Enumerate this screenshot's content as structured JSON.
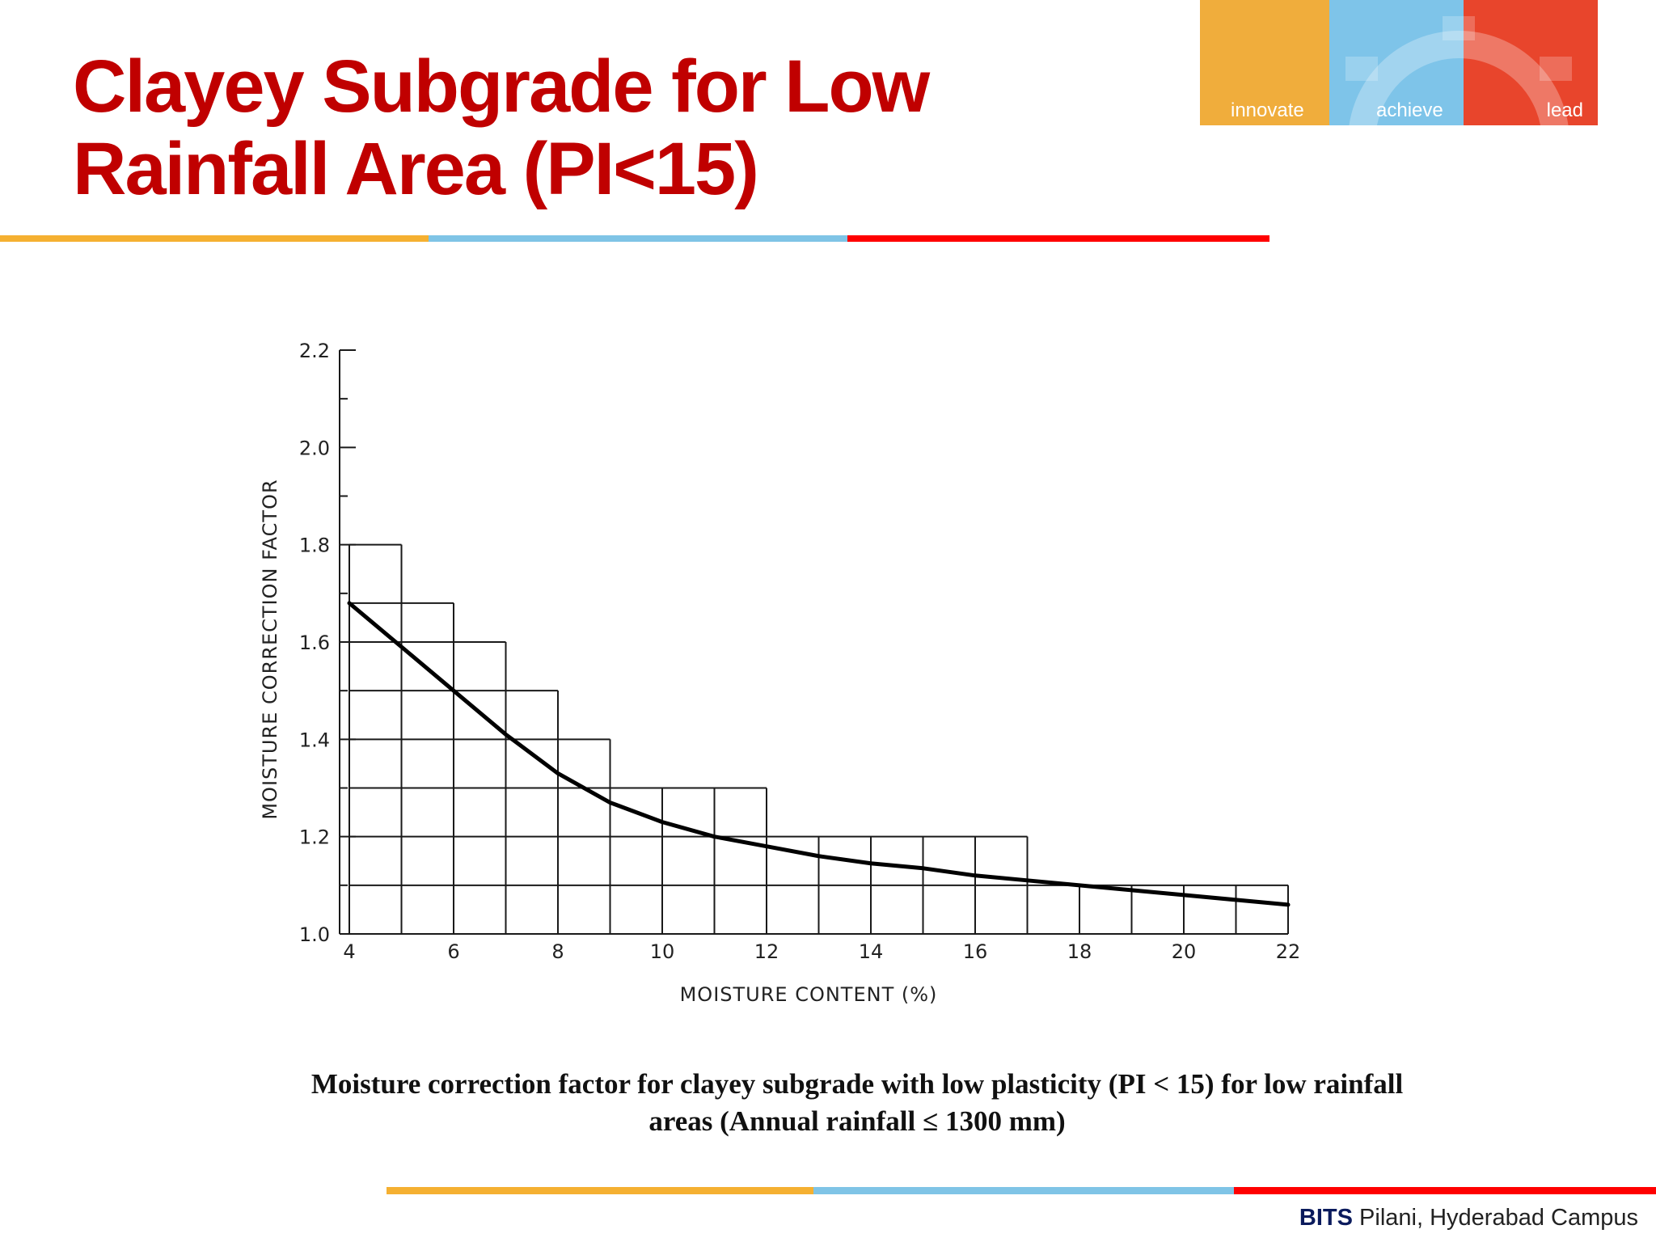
{
  "slide": {
    "title_line1": "Clayey Subgrade for Low",
    "title_line2": "Rainfall Area (PI<15)",
    "caption_line1": "Moisture correction factor for clayey subgrade with low plasticity (PI < 15) for low rainfall",
    "caption_line2": "areas  (Annual rainfall ≤  1300 mm)"
  },
  "logo": {
    "words": [
      "innovate",
      "achieve",
      "lead"
    ],
    "colors": [
      "#f0ad3c",
      "#7ec4e9",
      "#e8452c"
    ]
  },
  "divider_colors": [
    "#f5b031",
    "#7fc4e6",
    "#ff0000"
  ],
  "footer": {
    "brand": "BITS",
    "campus": " Pilani, Hyderabad Campus"
  },
  "chart_data": {
    "type": "line",
    "title": "",
    "xlabel": "MOISTURE CONTENT (%)",
    "ylabel": "MOISTURE CORRECTION FACTOR",
    "xlim": [
      4,
      22
    ],
    "ylim": [
      1.0,
      2.2
    ],
    "x_ticks": [
      4,
      6,
      8,
      10,
      12,
      14,
      16,
      18,
      20,
      22
    ],
    "x_tick_labels": [
      "4",
      "6",
      "8",
      "10",
      "12",
      "14",
      "16",
      "18",
      "20",
      "22"
    ],
    "y_ticks": [
      1.0,
      1.2,
      1.4,
      1.6,
      1.8,
      2.0,
      2.2
    ],
    "y_tick_labels": [
      "1.0",
      "1.2",
      "1.4",
      "1.6",
      "1.8",
      "2.0",
      "2.2"
    ],
    "grid": true,
    "series": [
      {
        "name": "Moisture correction factor",
        "x": [
          4,
          5,
          6,
          7,
          8,
          9,
          10,
          11,
          12,
          13,
          14,
          15,
          16,
          17,
          18,
          19,
          20,
          21,
          22
        ],
        "values": [
          1.68,
          1.59,
          1.5,
          1.41,
          1.33,
          1.27,
          1.23,
          1.2,
          1.18,
          1.16,
          1.145,
          1.135,
          1.12,
          1.11,
          1.1,
          1.09,
          1.08,
          1.07,
          1.06
        ]
      }
    ],
    "step_grid": {
      "row_levels": [
        1.1,
        1.2,
        1.3,
        1.4,
        1.5,
        1.6,
        1.68,
        1.8
      ],
      "row_extent_x": [
        22,
        17,
        12,
        9,
        8,
        7,
        6,
        5
      ]
    }
  }
}
